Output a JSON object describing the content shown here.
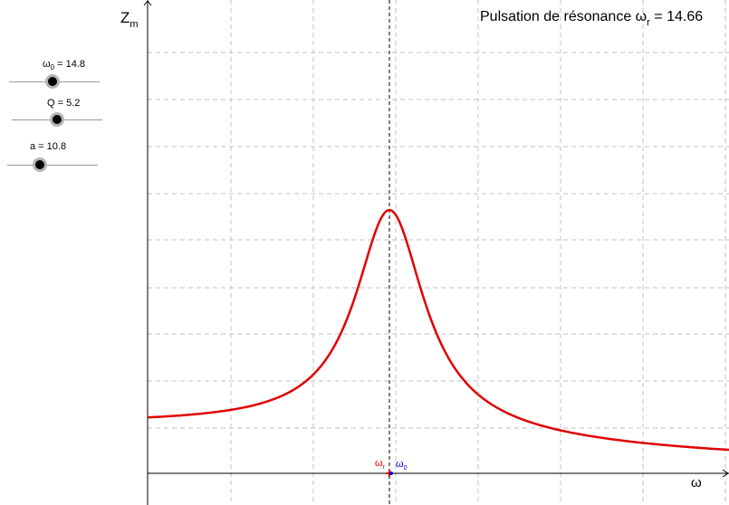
{
  "sliders": [
    {
      "name": "omega0",
      "label_main": "ω",
      "label_sub": "0",
      "label_value": " = 14.8"
    },
    {
      "name": "Q",
      "label_main": "Q",
      "label_sub": "",
      "label_value": " = 5.2"
    },
    {
      "name": "a",
      "label_main": "a",
      "label_sub": "",
      "label_value": " = 10.8"
    }
  ],
  "resonance": {
    "prefix": "Pulsation de résonance ω",
    "sub": "r",
    "suffix": " = 14.66"
  },
  "axes": {
    "y_label_main": "Z",
    "y_label_sub": "m",
    "x_label": "ω"
  },
  "markers": {
    "omega_r": {
      "main": "ω",
      "sub": "r",
      "color": "#ff0000"
    },
    "omega_0": {
      "main": "ω",
      "sub": "0",
      "color": "#0000cc"
    }
  },
  "colors": {
    "curve": "#e00000",
    "grid": "#c0c0c0",
    "axis": "#000000"
  }
}
